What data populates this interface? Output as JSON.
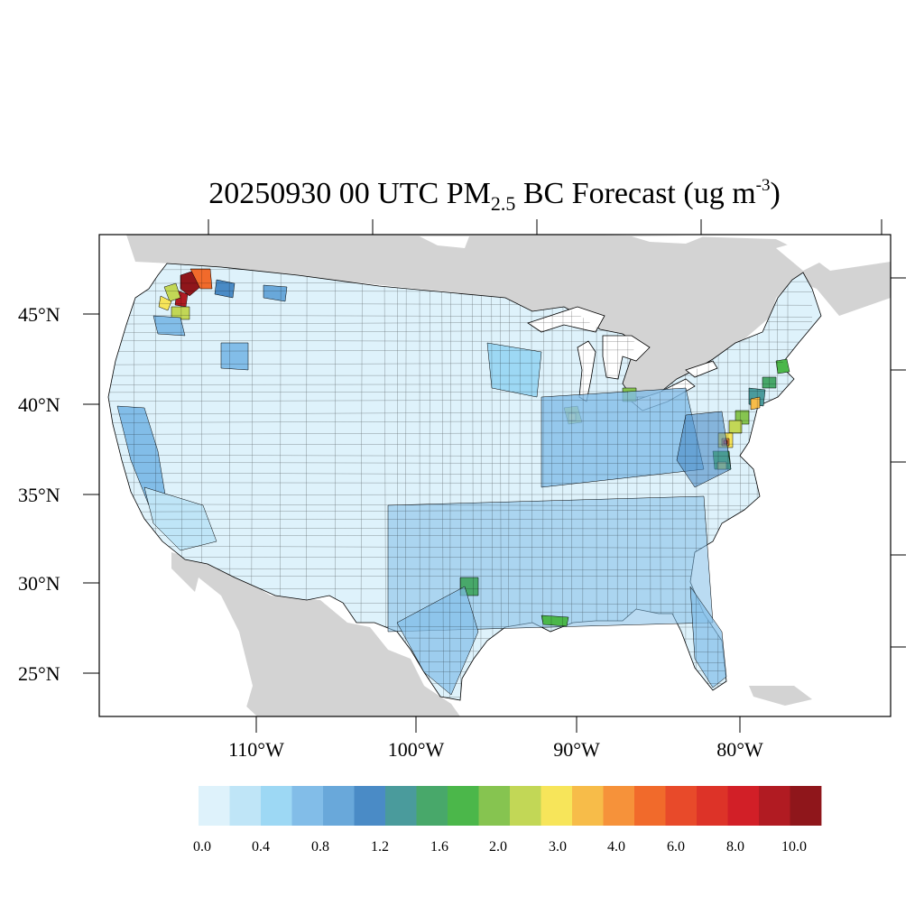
{
  "title": {
    "date_time": "20250930 00 UTC",
    "pm": "PM",
    "pm_sub": "2.5",
    "after_sub": " BC Forecast (ug m",
    "sup": "-3",
    "close": ")"
  },
  "axes": {
    "lat_labels": [
      "45°N",
      "40°N",
      "35°N",
      "30°N",
      "25°N"
    ],
    "lon_labels": [
      "110°W",
      "100°W",
      "90°W",
      "80°W"
    ]
  },
  "colorbar": {
    "colors": [
      "#def2fb",
      "#bfe5f7",
      "#9dd8f4",
      "#82bde8",
      "#69a8da",
      "#4a8bc6",
      "#4a9b9c",
      "#48a86a",
      "#4bb74a",
      "#86c450",
      "#c2d756",
      "#f7e55a",
      "#f7bc49",
      "#f6923a",
      "#f16a2b",
      "#e84a2a",
      "#dd3328",
      "#d21f27",
      "#b11b22",
      "#8f161b"
    ],
    "tick_labels": [
      "0.0",
      "0.4",
      "0.8",
      "1.2",
      "1.6",
      "2.0",
      "3.0",
      "4.0",
      "6.0",
      "8.0",
      "10.0"
    ]
  },
  "map": {
    "ocean_color": "#ffffff",
    "foreign_land_color": "#d3d3d3",
    "us_base_color": "#def2fb",
    "boundary_color": "#000000"
  }
}
